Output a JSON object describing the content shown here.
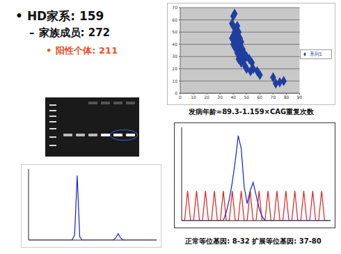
{
  "slide": {
    "bullets": [
      {
        "bullet": "•",
        "text": "HD家系: 159",
        "level": 1,
        "color": "#111111"
      },
      {
        "bullet": "–",
        "text": "家族成员: 272",
        "level": 2,
        "color": "#111111"
      },
      {
        "bullet": "•",
        "text": "阳性个体: 211",
        "level": 3,
        "color": "#e8502a"
      }
    ],
    "formula": "发病年龄≈89.3-1.159×CAG重复次数",
    "caption": "正常等位基因: 8-32 扩展等位基因: 37-80"
  },
  "chart_data": [
    {
      "type": "scatter",
      "series": [
        {
          "name": "系列1",
          "color": "#1f3fa0",
          "marker": "diamond",
          "x": [
            40,
            41,
            39,
            40,
            42,
            41,
            43,
            40,
            42,
            44,
            41,
            43,
            45,
            42,
            44,
            46,
            43,
            45,
            47,
            48,
            46,
            50,
            52,
            49,
            54,
            55,
            58,
            60,
            70,
            72,
            75,
            78,
            43,
            44,
            45,
            46,
            41,
            39,
            40,
            47,
            48,
            44,
            46,
            50,
            53
          ],
          "values": [
            63,
            65,
            57,
            55,
            52,
            50,
            48,
            47,
            45,
            44,
            42,
            40,
            38,
            37,
            35,
            34,
            33,
            30,
            29,
            27,
            25,
            30,
            28,
            22,
            25,
            20,
            18,
            15,
            13,
            8,
            9,
            10,
            55,
            50,
            45,
            42,
            38,
            45,
            40,
            36,
            33,
            28,
            30,
            20,
            18
          ]
        }
      ],
      "xlim": [
        0,
        90
      ],
      "xticks": [
        0,
        10,
        20,
        30,
        40,
        50,
        60,
        70,
        80,
        90
      ],
      "ylim": [
        0,
        70
      ],
      "yticks": [
        0,
        10,
        20,
        30,
        40,
        50,
        60,
        70
      ],
      "grid": true,
      "legend": "right"
    },
    {
      "type": "line",
      "x": [
        0,
        2,
        4,
        6,
        8,
        10,
        12,
        14,
        16,
        18,
        20,
        22,
        24,
        26,
        28,
        30,
        32,
        34,
        36,
        38,
        40,
        42,
        44,
        46,
        48,
        50,
        52,
        54,
        56,
        58,
        60,
        62,
        64,
        66,
        68,
        70,
        72,
        74,
        76,
        78,
        80,
        82,
        84,
        86,
        88,
        90,
        92,
        94,
        96,
        98,
        100
      ],
      "series": [
        {
          "color": "#1020d0",
          "values": [
            0,
            0,
            0,
            0,
            0,
            0,
            0,
            0,
            0,
            0,
            0,
            0,
            0,
            0,
            0,
            0,
            0,
            0,
            8,
            100,
            5,
            0,
            0,
            0,
            0,
            0,
            0,
            0,
            0,
            0,
            0,
            0,
            0,
            0,
            3,
            10,
            3,
            0,
            0,
            0,
            0,
            0,
            0,
            0,
            0,
            0,
            0,
            0,
            0,
            0,
            0
          ]
        }
      ],
      "xlim": [
        0,
        100
      ],
      "ylim": [
        0,
        110
      ],
      "tick_labels": false
    },
    {
      "type": "line",
      "x": [
        0,
        2,
        4,
        6,
        8,
        10,
        12,
        14,
        16,
        18,
        20,
        22,
        24,
        26,
        28,
        30,
        32,
        34,
        36,
        38,
        40,
        42,
        44,
        46,
        48,
        50,
        52,
        54,
        56,
        58,
        60,
        62,
        64,
        66,
        68,
        70,
        72,
        74,
        76,
        78,
        80,
        82,
        84,
        86,
        88,
        90,
        92,
        94,
        96,
        98,
        100
      ],
      "series": [
        {
          "color": "#e02020",
          "values": [
            0,
            0,
            35,
            0,
            0,
            35,
            0,
            0,
            35,
            0,
            0,
            35,
            0,
            0,
            35,
            0,
            0,
            35,
            0,
            0,
            35,
            0,
            0,
            35,
            0,
            0,
            35,
            0,
            0,
            35,
            0,
            0,
            35,
            0,
            0,
            35,
            0,
            0,
            35,
            0,
            0,
            35,
            0,
            0,
            35,
            0,
            0,
            35,
            0,
            0,
            0
          ]
        },
        {
          "color": "#1020d0",
          "values": [
            0,
            0,
            0,
            0,
            0,
            0,
            0,
            0,
            0,
            0,
            0,
            0,
            0,
            0,
            0,
            10,
            25,
            45,
            70,
            100,
            85,
            40,
            20,
            35,
            45,
            30,
            15,
            5,
            0,
            0,
            0,
            0,
            0,
            0,
            0,
            0,
            0,
            0,
            0,
            0,
            0,
            0,
            0,
            0,
            0,
            0,
            0,
            0,
            0,
            0,
            0
          ]
        }
      ],
      "xlim": [
        0,
        100
      ],
      "ylim": [
        0,
        110
      ],
      "tick_labels": false
    }
  ]
}
